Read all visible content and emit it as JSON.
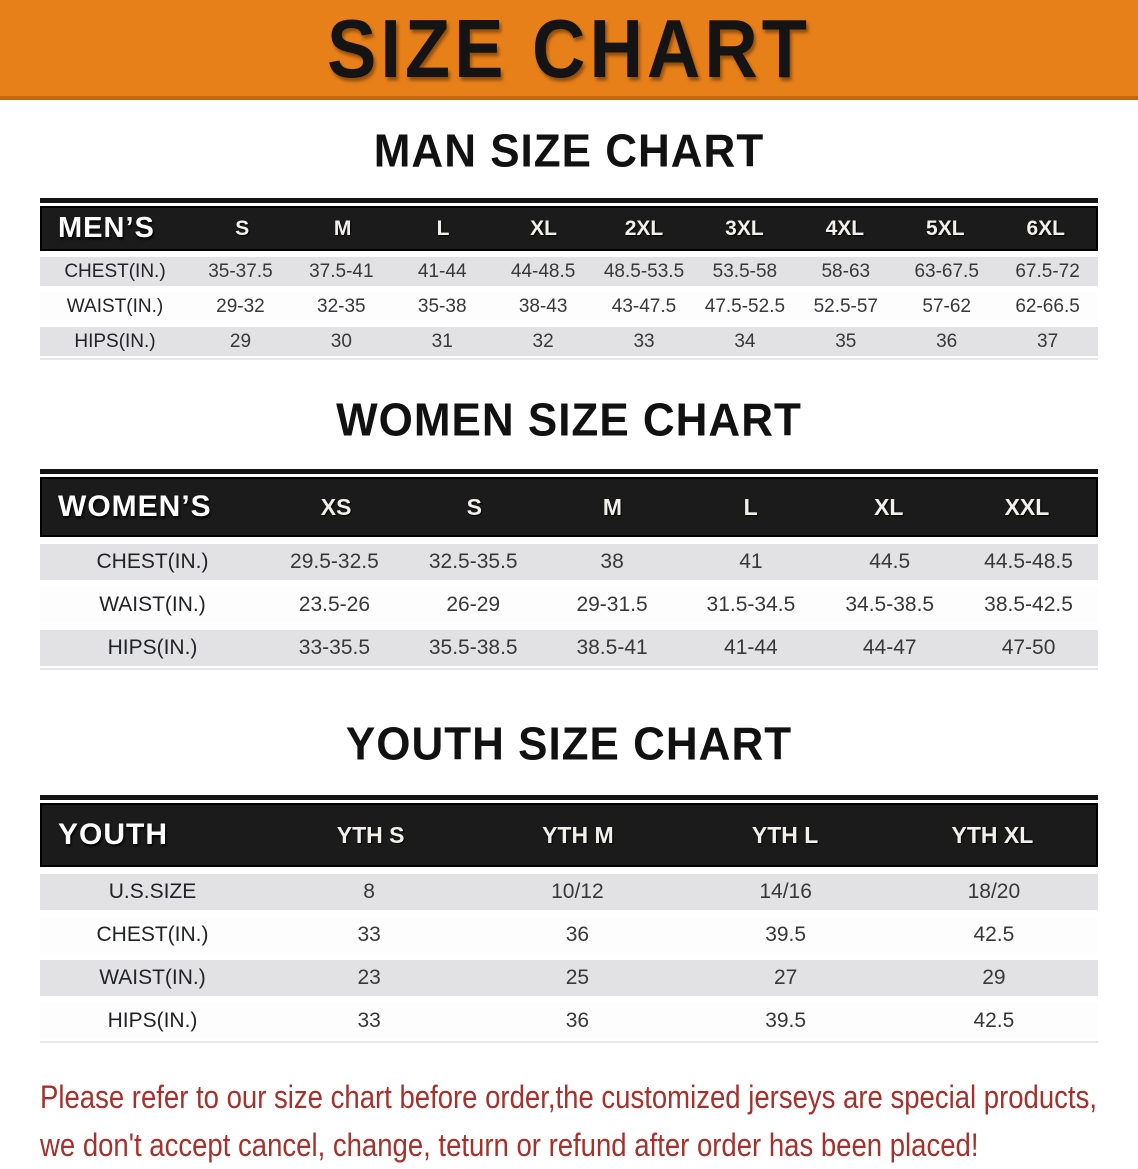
{
  "banner": {
    "title": "SIZE CHART"
  },
  "colors": {
    "banner_orange": "#e8801a",
    "table_header_black": "#1b1b1b",
    "row_gray": "#e2e2e4",
    "row_white": "#fdfdfd",
    "footer_red": "#a6312c"
  },
  "sections": {
    "men": {
      "heading": "MAN SIZE CHART",
      "table": {
        "label": "MEN’S",
        "sizes": [
          "S",
          "M",
          "L",
          "XL",
          "2XL",
          "3XL",
          "4XL",
          "5XL",
          "6XL"
        ],
        "rows": [
          {
            "label": "CHEST(IN.)",
            "values": [
              "35-37.5",
              "37.5-41",
              "41-44",
              "44-48.5",
              "48.5-53.5",
              "53.5-58",
              "58-63",
              "63-67.5",
              "67.5-72"
            ]
          },
          {
            "label": "WAIST(IN.)",
            "values": [
              "29-32",
              "32-35",
              "35-38",
              "38-43",
              "43-47.5",
              "47.5-52.5",
              "52.5-57",
              "57-62",
              "62-66.5"
            ]
          },
          {
            "label": "HIPS(IN.)",
            "values": [
              "29",
              "30",
              "31",
              "32",
              "33",
              "34",
              "35",
              "36",
              "37"
            ]
          }
        ]
      }
    },
    "women": {
      "heading": "WOMEN SIZE CHART",
      "table": {
        "label": "WOMEN’S",
        "sizes": [
          "XS",
          "S",
          "M",
          "L",
          "XL",
          "XXL"
        ],
        "rows": [
          {
            "label": "CHEST(IN.)",
            "values": [
              "29.5-32.5",
              "32.5-35.5",
              "38",
              "41",
              "44.5",
              "44.5-48.5"
            ]
          },
          {
            "label": "WAIST(IN.)",
            "values": [
              "23.5-26",
              "26-29",
              "29-31.5",
              "31.5-34.5",
              "34.5-38.5",
              "38.5-42.5"
            ]
          },
          {
            "label": "HIPS(IN.)",
            "values": [
              "33-35.5",
              "35.5-38.5",
              "38.5-41",
              "41-44",
              "44-47",
              "47-50"
            ]
          }
        ]
      }
    },
    "youth": {
      "heading": "YOUTH SIZE CHART",
      "table": {
        "label": "YOUTH",
        "sizes": [
          "YTH S",
          "YTH M",
          "YTH L",
          "YTH XL"
        ],
        "rows": [
          {
            "label": "U.S.SIZE",
            "values": [
              "8",
              "10/12",
              "14/16",
              "18/20"
            ]
          },
          {
            "label": "CHEST(IN.)",
            "values": [
              "33",
              "36",
              "39.5",
              "42.5"
            ]
          },
          {
            "label": "WAIST(IN.)",
            "values": [
              "23",
              "25",
              "27",
              "29"
            ]
          },
          {
            "label": "HIPS(IN.)",
            "values": [
              "33",
              "36",
              "39.5",
              "42.5"
            ]
          }
        ]
      }
    }
  },
  "footer": {
    "line1": "Please refer to our size chart before order,the customized jerseys are special products,",
    "line2": "we don't accept cancel, change, teturn or refund after order has been placed!"
  }
}
